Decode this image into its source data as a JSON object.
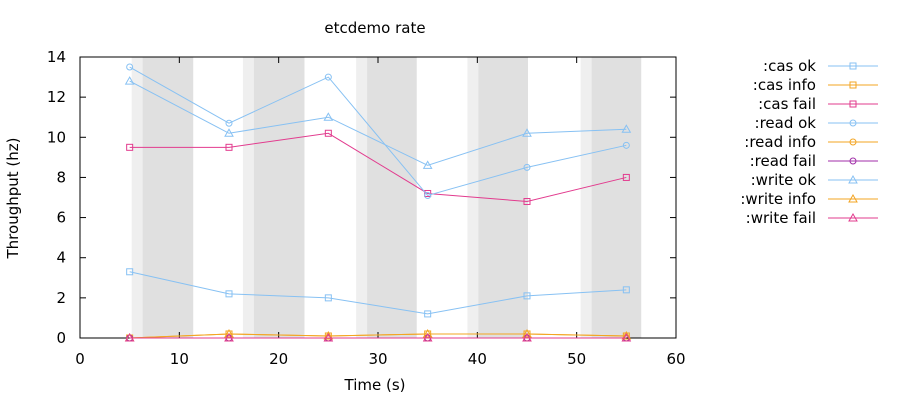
{
  "chart_data": {
    "type": "line",
    "title": "etcdemo rate",
    "xlabel": "Time (s)",
    "ylabel": "Throughput (hz)",
    "xlim": [
      0,
      60
    ],
    "ylim": [
      0,
      14
    ],
    "xticks": [
      0,
      10,
      20,
      30,
      40,
      50,
      60
    ],
    "yticks": [
      0,
      2,
      4,
      6,
      8,
      10,
      12,
      14
    ],
    "grid": false,
    "legend_position": "right",
    "x": [
      5,
      15,
      25,
      35,
      45,
      55
    ],
    "shaded_intervals": [
      {
        "light": [
          5.2,
          6.3
        ],
        "dark": [
          6.3,
          11.4
        ]
      },
      {
        "light": [
          16.4,
          17.5
        ],
        "dark": [
          17.5,
          22.6
        ]
      },
      {
        "light": [
          27.8,
          28.9
        ],
        "dark": [
          28.9,
          33.9
        ]
      },
      {
        "light": [
          39.0,
          40.1
        ],
        "dark": [
          40.1,
          45.1
        ]
      },
      {
        "light": [
          50.4,
          51.5
        ],
        "dark": [
          51.5,
          56.5
        ]
      }
    ],
    "series": [
      {
        "name": ":cas ok",
        "color": "#87c1f3",
        "marker": "square",
        "values": [
          3.3,
          2.2,
          2.0,
          1.2,
          2.1,
          2.4
        ]
      },
      {
        "name": ":cas info",
        "color": "#f3a422",
        "marker": "square",
        "values": [
          0.0,
          0.2,
          0.1,
          0.2,
          0.2,
          0.1
        ]
      },
      {
        "name": ":cas fail",
        "color": "#e23b8e",
        "marker": "square",
        "values": [
          9.5,
          9.5,
          10.2,
          7.2,
          6.8,
          8.0
        ]
      },
      {
        "name": ":read ok",
        "color": "#87c1f3",
        "marker": "circle",
        "values": [
          13.5,
          10.7,
          13.0,
          7.1,
          8.5,
          9.6
        ]
      },
      {
        "name": ":read info",
        "color": "#f3a422",
        "marker": "circle",
        "values": [
          0.0,
          0.0,
          0.0,
          0.0,
          0.0,
          0.0
        ]
      },
      {
        "name": ":read fail",
        "color": "#a02ea8",
        "marker": "circle",
        "values": [
          0.0,
          0.0,
          0.0,
          0.0,
          0.0,
          0.0
        ]
      },
      {
        "name": ":write ok",
        "color": "#87c1f3",
        "marker": "triangle",
        "values": [
          12.8,
          10.2,
          11.0,
          8.6,
          10.2,
          10.4
        ]
      },
      {
        "name": ":write info",
        "color": "#f3a422",
        "marker": "triangle",
        "values": [
          0.0,
          0.2,
          0.1,
          0.2,
          0.2,
          0.1
        ]
      },
      {
        "name": ":write fail",
        "color": "#e23b8e",
        "marker": "triangle",
        "values": [
          0.0,
          0.0,
          0.0,
          0.0,
          0.0,
          0.0
        ]
      }
    ]
  }
}
